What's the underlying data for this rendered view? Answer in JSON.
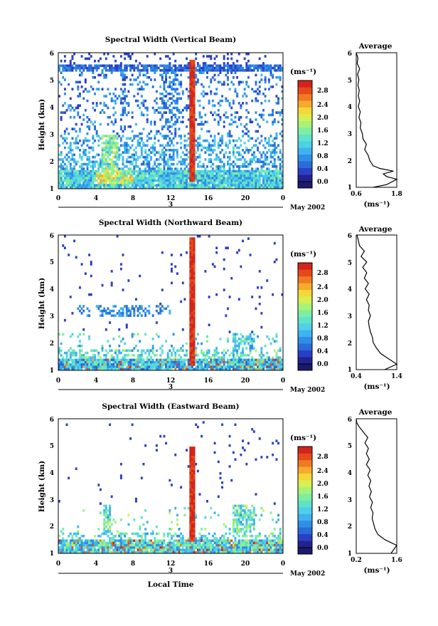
{
  "chart_data": [
    {
      "type": "heatmap",
      "title": "Spectral Width (Vertical Beam)",
      "xlabel": "",
      "ylabel": "Height (km)",
      "x_ticks": [
        "0",
        "4",
        "8",
        "12",
        "16",
        "20",
        "0"
      ],
      "xlim": [
        0,
        24
      ],
      "y_ticks": [
        "1",
        "2",
        "3",
        "4",
        "5",
        "6"
      ],
      "ylim": [
        1,
        6
      ],
      "date_tick": "3",
      "date_label": "May 2002",
      "colorbar": {
        "unit": "(ms⁻¹)",
        "ticks": [
          "0.0",
          "0.4",
          "0.8",
          "1.2",
          "1.6",
          "2.0",
          "2.4",
          "2.8"
        ],
        "range": [
          0.0,
          3.0
        ]
      },
      "average_profile": {
        "title": "Average",
        "xlabel": "(ms⁻¹)",
        "x_ticks": [
          "0.6",
          "1.8"
        ],
        "xlim": [
          0.6,
          1.8
        ],
        "y_ticks": [
          "1",
          "2",
          "3",
          "4",
          "5",
          "6"
        ],
        "ylim": [
          1,
          6
        ],
        "points": [
          [
            1.1,
            1.0
          ],
          [
            1.5,
            1.1
          ],
          [
            1.8,
            1.3
          ],
          [
            1.5,
            1.4
          ],
          [
            1.4,
            1.5
          ],
          [
            1.7,
            1.6
          ],
          [
            1.3,
            1.7
          ],
          [
            1.1,
            1.8
          ],
          [
            1.0,
            2.0
          ],
          [
            0.95,
            2.2
          ],
          [
            0.85,
            2.4
          ],
          [
            0.9,
            2.6
          ],
          [
            0.8,
            2.8
          ],
          [
            0.78,
            3.0
          ],
          [
            0.72,
            3.2
          ],
          [
            0.74,
            3.4
          ],
          [
            0.68,
            3.6
          ],
          [
            0.72,
            3.8
          ],
          [
            0.66,
            4.0
          ],
          [
            0.7,
            4.2
          ],
          [
            0.66,
            4.4
          ],
          [
            0.69,
            4.6
          ],
          [
            0.65,
            4.8
          ],
          [
            0.68,
            5.0
          ],
          [
            0.64,
            5.2
          ],
          [
            0.7,
            5.4
          ],
          [
            0.63,
            5.6
          ],
          [
            0.65,
            5.8
          ],
          [
            0.6,
            6.0
          ]
        ]
      }
    },
    {
      "type": "heatmap",
      "title": "Spectral Width (Northward Beam)",
      "xlabel": "",
      "ylabel": "Height (km)",
      "x_ticks": [
        "0",
        "4",
        "8",
        "12",
        "16",
        "20",
        "0"
      ],
      "xlim": [
        0,
        24
      ],
      "y_ticks": [
        "1",
        "2",
        "3",
        "4",
        "5",
        "6"
      ],
      "ylim": [
        1,
        6
      ],
      "date_tick": "3",
      "date_label": "May 2002",
      "colorbar": {
        "unit": "(ms⁻¹)",
        "ticks": [
          "0.0",
          "0.4",
          "0.8",
          "1.2",
          "1.6",
          "2.0",
          "2.4",
          "2.8"
        ],
        "range": [
          0.0,
          3.0
        ]
      },
      "average_profile": {
        "title": "Average",
        "xlabel": "(ms⁻¹)",
        "x_ticks": [
          "0.4",
          "1.4"
        ],
        "xlim": [
          0.4,
          1.4
        ],
        "y_ticks": [
          "1",
          "2",
          "3",
          "4",
          "5",
          "6"
        ],
        "ylim": [
          1,
          6
        ],
        "points": [
          [
            1.1,
            1.0
          ],
          [
            1.4,
            1.2
          ],
          [
            1.2,
            1.4
          ],
          [
            1.0,
            1.6
          ],
          [
            0.9,
            1.8
          ],
          [
            0.82,
            2.0
          ],
          [
            0.8,
            2.2
          ],
          [
            0.75,
            2.4
          ],
          [
            0.72,
            2.6
          ],
          [
            0.7,
            2.8
          ],
          [
            0.75,
            3.0
          ],
          [
            0.7,
            3.2
          ],
          [
            0.72,
            3.4
          ],
          [
            0.65,
            3.6
          ],
          [
            0.72,
            3.8
          ],
          [
            0.62,
            4.0
          ],
          [
            0.7,
            4.2
          ],
          [
            0.6,
            4.4
          ],
          [
            0.66,
            4.6
          ],
          [
            0.56,
            4.8
          ],
          [
            0.66,
            5.0
          ],
          [
            0.52,
            5.2
          ],
          [
            0.6,
            5.4
          ],
          [
            0.48,
            5.6
          ],
          [
            0.45,
            5.8
          ],
          [
            0.42,
            6.0
          ]
        ]
      }
    },
    {
      "type": "heatmap",
      "title": "Spectral Width (Eastward Beam)",
      "xlabel": "Local Time",
      "ylabel": "Height (km)",
      "x_ticks": [
        "0",
        "4",
        "8",
        "12",
        "16",
        "20",
        "0"
      ],
      "xlim": [
        0,
        24
      ],
      "y_ticks": [
        "1",
        "2",
        "3",
        "4",
        "5",
        "6"
      ],
      "ylim": [
        1,
        6
      ],
      "date_tick": "3",
      "date_label": "May 2002",
      "colorbar": {
        "unit": "(ms⁻¹)",
        "ticks": [
          "0.0",
          "0.4",
          "0.8",
          "1.2",
          "1.6",
          "2.0",
          "2.4",
          "2.8"
        ],
        "range": [
          0.0,
          3.0
        ]
      },
      "average_profile": {
        "title": "Average",
        "xlabel": "(ms⁻¹)",
        "x_ticks": [
          "0.2",
          "1.6"
        ],
        "xlim": [
          0.2,
          1.6
        ],
        "y_ticks": [
          "1",
          "2",
          "3",
          "4",
          "5",
          "6"
        ],
        "ylim": [
          1,
          6
        ],
        "points": [
          [
            1.4,
            1.0
          ],
          [
            1.6,
            1.3
          ],
          [
            1.2,
            1.5
          ],
          [
            0.95,
            1.7
          ],
          [
            0.85,
            1.9
          ],
          [
            0.8,
            2.1
          ],
          [
            0.75,
            2.3
          ],
          [
            0.78,
            2.5
          ],
          [
            0.7,
            2.7
          ],
          [
            0.76,
            2.9
          ],
          [
            0.66,
            3.1
          ],
          [
            0.72,
            3.3
          ],
          [
            0.64,
            3.5
          ],
          [
            0.7,
            3.7
          ],
          [
            0.6,
            3.9
          ],
          [
            0.68,
            4.1
          ],
          [
            0.55,
            4.3
          ],
          [
            0.65,
            4.5
          ],
          [
            0.55,
            4.7
          ],
          [
            0.62,
            4.9
          ],
          [
            0.5,
            5.1
          ],
          [
            0.6,
            5.3
          ],
          [
            0.45,
            5.5
          ],
          [
            0.3,
            5.7
          ],
          [
            0.22,
            5.85
          ],
          [
            0.2,
            6.0
          ]
        ]
      }
    }
  ],
  "colormap": [
    "#1a1a6e",
    "#23238f",
    "#2a3fc7",
    "#2a6bd6",
    "#2f8ee6",
    "#3fb2f0",
    "#4fd0e8",
    "#5fe3c9",
    "#7eeea0",
    "#a9f27a",
    "#d8ef52",
    "#f4d83a",
    "#f7aa2c",
    "#f07a22",
    "#e64a1c",
    "#d3241a"
  ],
  "line_color": "#000000"
}
